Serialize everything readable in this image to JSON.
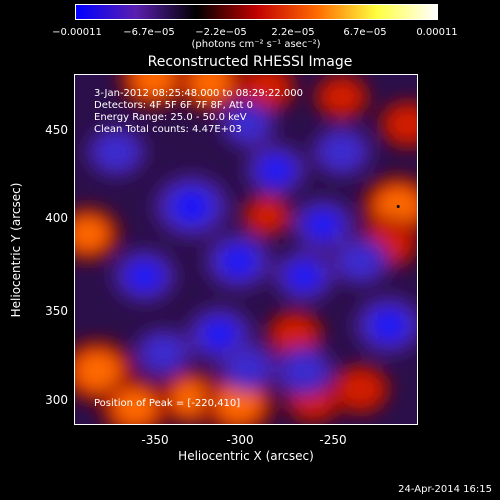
{
  "chart_data": {
    "type": "heatmap",
    "title": "Reconstructed RHESSI Image",
    "xlabel": "Heliocentric X (arcsec)",
    "ylabel": "Heliocentric Y (arcsec)",
    "xlim": [
      -392,
      -210
    ],
    "ylim": [
      291,
      482
    ],
    "x_ticks": [
      -350,
      -300,
      -250
    ],
    "y_ticks": [
      300,
      350,
      400,
      450
    ],
    "colorbar": {
      "range": [
        -0.00011,
        0.00011
      ],
      "tick_labels": [
        "−0.00011",
        "−6.7e−05",
        "−2.2e−05",
        "2.2e−05",
        "6.7e−05",
        "0.00011"
      ],
      "unit_label": "(photons cm⁻² s⁻¹ asec⁻²)",
      "colors": [
        "#0000ff",
        "#5a1fae",
        "#000000",
        "#c00000",
        "#ff6a00",
        "#ffff40",
        "#ffffff"
      ]
    },
    "annotations": {
      "time_range": "3-Jan-2012 08:25:48.000 to 08:29:22.000",
      "detectors": "Detectors: 4F 5F 6F 7F 8F, Att 0",
      "energy": "Energy Range: 25.0 - 50.0 keV",
      "method": "Clean     Total counts: 4.47E+03",
      "peak": "Position of Peak = [-220,410]"
    },
    "peak_position": [
      -220,
      410
    ],
    "features": [
      {
        "x": -380,
        "y": 320,
        "v": 1.0
      },
      {
        "x": -360,
        "y": 300,
        "v": 0.85
      },
      {
        "x": -330,
        "y": 305,
        "v": 0.7
      },
      {
        "x": -305,
        "y": 302,
        "v": 0.95
      },
      {
        "x": -265,
        "y": 305,
        "v": 0.55
      },
      {
        "x": -350,
        "y": 480,
        "v": 0.85
      },
      {
        "x": -320,
        "y": 478,
        "v": 0.8
      },
      {
        "x": -290,
        "y": 475,
        "v": 0.55
      },
      {
        "x": -220,
        "y": 410,
        "v": 1.0
      },
      {
        "x": -225,
        "y": 390,
        "v": 0.6
      },
      {
        "x": -385,
        "y": 395,
        "v": 0.7
      },
      {
        "x": -215,
        "y": 455,
        "v": 0.5
      },
      {
        "x": -240,
        "y": 310,
        "v": 0.55
      },
      {
        "x": -275,
        "y": 340,
        "v": 0.5
      },
      {
        "x": -290,
        "y": 405,
        "v": 0.35
      },
      {
        "x": -250,
        "y": 470,
        "v": 0.45
      },
      {
        "x": -330,
        "y": 410,
        "v": -1.0
      },
      {
        "x": -305,
        "y": 380,
        "v": -0.75
      },
      {
        "x": -355,
        "y": 372,
        "v": -0.65
      },
      {
        "x": -270,
        "y": 372,
        "v": -0.6
      },
      {
        "x": -225,
        "y": 345,
        "v": -0.8
      },
      {
        "x": -285,
        "y": 430,
        "v": -0.6
      },
      {
        "x": -250,
        "y": 440,
        "v": -0.55
      },
      {
        "x": -260,
        "y": 400,
        "v": -0.6
      },
      {
        "x": -315,
        "y": 340,
        "v": -0.7
      },
      {
        "x": -345,
        "y": 330,
        "v": -0.5
      },
      {
        "x": -370,
        "y": 440,
        "v": -0.55
      },
      {
        "x": -300,
        "y": 455,
        "v": -0.45
      },
      {
        "x": -240,
        "y": 380,
        "v": -0.5
      },
      {
        "x": -300,
        "y": 322,
        "v": -0.5
      },
      {
        "x": -270,
        "y": 320,
        "v": -0.55
      }
    ]
  },
  "footer_date": "24-Apr-2014 16:15"
}
